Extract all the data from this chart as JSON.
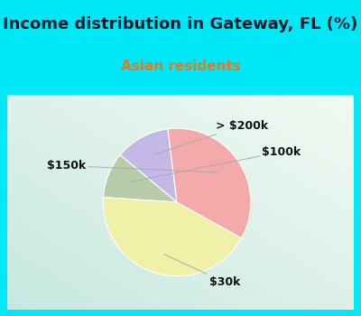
{
  "title": "Income distribution in Gateway, FL (%)",
  "subtitle": "Asian residents",
  "labels": [
    "> $200k",
    "$100k",
    "$30k",
    "$150k"
  ],
  "sizes": [
    12,
    10,
    43,
    35
  ],
  "colors": [
    "#c4b8e8",
    "#b8ccaa",
    "#f0f0a8",
    "#f4aaaa"
  ],
  "title_fontsize": 13,
  "subtitle_fontsize": 11,
  "subtitle_color": "#e87820",
  "title_color": "#1a1a2e",
  "background_color": "#00e8f8",
  "label_color": "#111111",
  "label_fontsize": 9,
  "startangle": 97,
  "wedge_linewidth": 0.8,
  "wedge_edgecolor": "#ffffff"
}
